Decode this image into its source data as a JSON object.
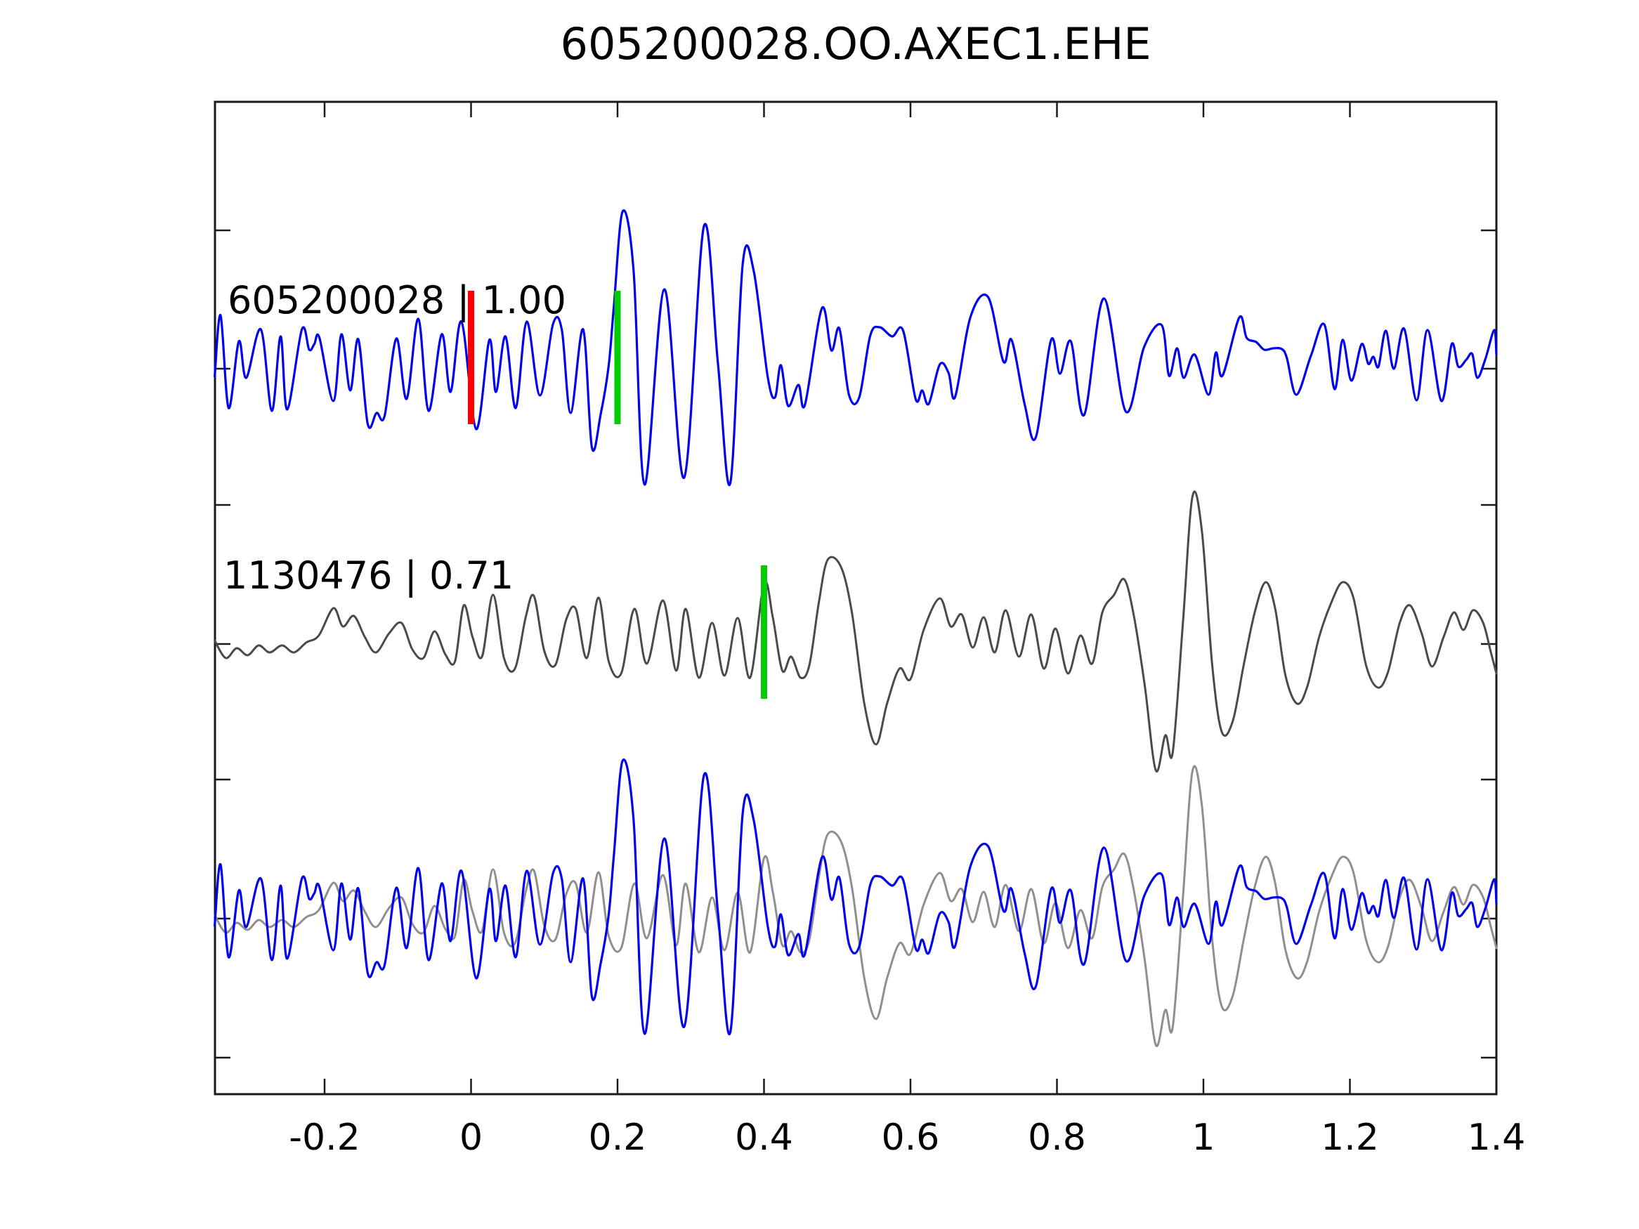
{
  "title": "605200028.OO.AXEC1.EHE",
  "chart_data": {
    "type": "line",
    "title": "605200028.OO.AXEC1.EHE",
    "xlabel": "",
    "ylabel": "",
    "grid": false,
    "legend_position": "none",
    "x_range": [
      -0.35,
      1.4
    ],
    "x_ticks": [
      {
        "value": -0.2,
        "label": "-0.2"
      },
      {
        "value": 0.0,
        "label": "0"
      },
      {
        "value": 0.2,
        "label": "0.2"
      },
      {
        "value": 0.4,
        "label": "0.4"
      },
      {
        "value": 0.6,
        "label": "0.6"
      },
      {
        "value": 0.8,
        "label": "0.8"
      },
      {
        "value": 1.0,
        "label": "1"
      },
      {
        "value": 1.2,
        "label": "1.2"
      },
      {
        "value": 1.4,
        "label": "1.4"
      }
    ],
    "rows": 3,
    "traces": [
      {
        "id": "605200028",
        "label": "605200028 | 1.00",
        "correlation": "1.00",
        "color": "#0000ee",
        "row": 0,
        "points": [
          [
            -0.35,
            -0.1
          ],
          [
            -0.342,
            0.77
          ],
          [
            -0.331,
            -0.55
          ],
          [
            -0.317,
            0.4
          ],
          [
            -0.307,
            -0.12
          ],
          [
            -0.287,
            0.57
          ],
          [
            -0.272,
            -0.59
          ],
          [
            -0.26,
            0.47
          ],
          [
            -0.251,
            -0.57
          ],
          [
            -0.231,
            0.57
          ],
          [
            -0.221,
            0.28
          ],
          [
            -0.214,
            0.36
          ],
          [
            -0.207,
            0.45
          ],
          [
            -0.188,
            -0.45
          ],
          [
            -0.177,
            0.5
          ],
          [
            -0.165,
            -0.3
          ],
          [
            -0.154,
            0.43
          ],
          [
            -0.141,
            -0.78
          ],
          [
            -0.129,
            -0.62
          ],
          [
            -0.118,
            -0.66
          ],
          [
            -0.102,
            0.44
          ],
          [
            -0.088,
            -0.42
          ],
          [
            -0.072,
            0.72
          ],
          [
            -0.058,
            -0.59
          ],
          [
            -0.04,
            0.5
          ],
          [
            -0.028,
            -0.32
          ],
          [
            -0.013,
            0.68
          ],
          [
            0.007,
            -0.85
          ],
          [
            0.025,
            0.42
          ],
          [
            0.034,
            -0.32
          ],
          [
            0.047,
            0.47
          ],
          [
            0.061,
            -0.55
          ],
          [
            0.076,
            0.68
          ],
          [
            0.094,
            -0.37
          ],
          [
            0.112,
            0.65
          ],
          [
            0.124,
            0.56
          ],
          [
            0.136,
            -0.62
          ],
          [
            0.153,
            0.57
          ],
          [
            0.165,
            -1.11
          ],
          [
            0.177,
            -0.64
          ],
          [
            0.188,
            0.06
          ],
          [
            0.195,
            0.9
          ],
          [
            0.207,
            2.25
          ],
          [
            0.222,
            1.4
          ],
          [
            0.237,
            -1.64
          ],
          [
            0.264,
            1.14
          ],
          [
            0.291,
            -1.54
          ],
          [
            0.318,
            2.04
          ],
          [
            0.337,
            0.1
          ],
          [
            0.354,
            -1.62
          ],
          [
            0.371,
            1.51
          ],
          [
            0.386,
            1.4
          ],
          [
            0.405,
            -0.1
          ],
          [
            0.415,
            -0.4
          ],
          [
            0.423,
            0.06
          ],
          [
            0.433,
            -0.52
          ],
          [
            0.447,
            -0.22
          ],
          [
            0.456,
            -0.5
          ],
          [
            0.479,
            0.87
          ],
          [
            0.492,
            0.27
          ],
          [
            0.503,
            0.58
          ],
          [
            0.516,
            -0.36
          ],
          [
            0.53,
            -0.4
          ],
          [
            0.545,
            0.48
          ],
          [
            0.558,
            0.6
          ],
          [
            0.575,
            0.47
          ],
          [
            0.59,
            0.55
          ],
          [
            0.607,
            -0.42
          ],
          [
            0.616,
            -0.3
          ],
          [
            0.625,
            -0.49
          ],
          [
            0.64,
            0.07
          ],
          [
            0.652,
            -0.05
          ],
          [
            0.661,
            -0.39
          ],
          [
            0.682,
            0.75
          ],
          [
            0.706,
            1.03
          ],
          [
            0.727,
            0.11
          ],
          [
            0.738,
            0.42
          ],
          [
            0.756,
            -0.5
          ],
          [
            0.771,
            -0.97
          ],
          [
            0.792,
            0.42
          ],
          [
            0.804,
            -0.06
          ],
          [
            0.819,
            0.4
          ],
          [
            0.837,
            -0.65
          ],
          [
            0.864,
            1.01
          ],
          [
            0.894,
            -0.6
          ],
          [
            0.919,
            0.32
          ],
          [
            0.943,
            0.63
          ],
          [
            0.953,
            -0.09
          ],
          [
            0.964,
            0.3
          ],
          [
            0.973,
            -0.12
          ],
          [
            0.988,
            0.21
          ],
          [
            1.007,
            -0.36
          ],
          [
            1.017,
            0.24
          ],
          [
            1.026,
            -0.09
          ],
          [
            1.049,
            0.74
          ],
          [
            1.059,
            0.45
          ],
          [
            1.072,
            0.39
          ],
          [
            1.083,
            0.28
          ],
          [
            1.095,
            0.3
          ],
          [
            1.107,
            0.29
          ],
          [
            1.114,
            0.16
          ],
          [
            1.127,
            -0.36
          ],
          [
            1.147,
            0.2
          ],
          [
            1.165,
            0.64
          ],
          [
            1.179,
            -0.28
          ],
          [
            1.19,
            0.42
          ],
          [
            1.202,
            -0.16
          ],
          [
            1.216,
            0.36
          ],
          [
            1.225,
            0.08
          ],
          [
            1.232,
            0.18
          ],
          [
            1.239,
            0.04
          ],
          [
            1.249,
            0.55
          ],
          [
            1.26,
            0.01
          ],
          [
            1.274,
            0.58
          ],
          [
            1.291,
            -0.44
          ],
          [
            1.306,
            0.56
          ],
          [
            1.325,
            -0.45
          ],
          [
            1.339,
            0.36
          ],
          [
            1.348,
            0.04
          ],
          [
            1.359,
            0.14
          ],
          [
            1.367,
            0.22
          ],
          [
            1.374,
            -0.12
          ],
          [
            1.385,
            0.15
          ],
          [
            1.397,
            0.56
          ],
          [
            1.4,
            0.21
          ]
        ]
      },
      {
        "id": "1130476",
        "label": "1130476 | 0.71",
        "correlation": "0.71",
        "color": "#4a4a4a",
        "row": 1,
        "points": [
          [
            -0.35,
            0.05
          ],
          [
            -0.335,
            -0.2
          ],
          [
            -0.32,
            -0.06
          ],
          [
            -0.305,
            -0.16
          ],
          [
            -0.29,
            -0.02
          ],
          [
            -0.275,
            -0.12
          ],
          [
            -0.258,
            -0.02
          ],
          [
            -0.242,
            -0.12
          ],
          [
            -0.225,
            0.02
          ],
          [
            -0.208,
            0.12
          ],
          [
            -0.188,
            0.51
          ],
          [
            -0.175,
            0.25
          ],
          [
            -0.16,
            0.4
          ],
          [
            -0.145,
            0.1
          ],
          [
            -0.13,
            -0.12
          ],
          [
            -0.112,
            0.15
          ],
          [
            -0.095,
            0.3
          ],
          [
            -0.08,
            -0.08
          ],
          [
            -0.065,
            -0.2
          ],
          [
            -0.05,
            0.18
          ],
          [
            -0.035,
            -0.15
          ],
          [
            -0.022,
            -0.25
          ],
          [
            -0.01,
            0.55
          ],
          [
            0.002,
            0.1
          ],
          [
            0.015,
            -0.18
          ],
          [
            0.03,
            0.7
          ],
          [
            0.045,
            -0.2
          ],
          [
            0.06,
            -0.35
          ],
          [
            0.075,
            0.4
          ],
          [
            0.086,
            0.68
          ],
          [
            0.1,
            -0.1
          ],
          [
            0.115,
            -0.3
          ],
          [
            0.13,
            0.35
          ],
          [
            0.143,
            0.5
          ],
          [
            0.158,
            -0.2
          ],
          [
            0.174,
            0.66
          ],
          [
            0.188,
            -0.25
          ],
          [
            0.205,
            -0.42
          ],
          [
            0.223,
            0.5
          ],
          [
            0.24,
            -0.28
          ],
          [
            0.262,
            0.62
          ],
          [
            0.28,
            -0.38
          ],
          [
            0.293,
            0.5
          ],
          [
            0.311,
            -0.48
          ],
          [
            0.329,
            0.3
          ],
          [
            0.346,
            -0.45
          ],
          [
            0.364,
            0.37
          ],
          [
            0.381,
            -0.48
          ],
          [
            0.4,
            0.86
          ],
          [
            0.412,
            0.38
          ],
          [
            0.425,
            -0.38
          ],
          [
            0.437,
            -0.18
          ],
          [
            0.45,
            -0.48
          ],
          [
            0.462,
            -0.3
          ],
          [
            0.475,
            0.6
          ],
          [
            0.487,
            1.2
          ],
          [
            0.505,
            1.1
          ],
          [
            0.52,
            0.45
          ],
          [
            0.537,
            -0.85
          ],
          [
            0.553,
            -1.43
          ],
          [
            0.568,
            -0.85
          ],
          [
            0.585,
            -0.35
          ],
          [
            0.6,
            -0.5
          ],
          [
            0.618,
            0.2
          ],
          [
            0.64,
            0.65
          ],
          [
            0.655,
            0.25
          ],
          [
            0.67,
            0.42
          ],
          [
            0.685,
            -0.05
          ],
          [
            0.7,
            0.38
          ],
          [
            0.715,
            -0.12
          ],
          [
            0.73,
            0.48
          ],
          [
            0.748,
            -0.18
          ],
          [
            0.765,
            0.42
          ],
          [
            0.782,
            -0.35
          ],
          [
            0.798,
            0.22
          ],
          [
            0.815,
            -0.42
          ],
          [
            0.832,
            0.12
          ],
          [
            0.848,
            -0.28
          ],
          [
            0.862,
            0.45
          ],
          [
            0.878,
            0.7
          ],
          [
            0.892,
            0.92
          ],
          [
            0.905,
            0.4
          ],
          [
            0.92,
            -0.6
          ],
          [
            0.935,
            -1.8
          ],
          [
            0.948,
            -1.3
          ],
          [
            0.958,
            -1.55
          ],
          [
            0.972,
            0.3
          ],
          [
            0.985,
            2.1
          ],
          [
            0.998,
            1.6
          ],
          [
            1.012,
            -0.3
          ],
          [
            1.025,
            -1.25
          ],
          [
            1.04,
            -1.1
          ],
          [
            1.055,
            -0.3
          ],
          [
            1.07,
            0.45
          ],
          [
            1.085,
            0.88
          ],
          [
            1.098,
            0.5
          ],
          [
            1.112,
            -0.45
          ],
          [
            1.128,
            -0.85
          ],
          [
            1.142,
            -0.6
          ],
          [
            1.158,
            0.1
          ],
          [
            1.175,
            0.6
          ],
          [
            1.19,
            0.88
          ],
          [
            1.205,
            0.65
          ],
          [
            1.222,
            -0.3
          ],
          [
            1.238,
            -0.62
          ],
          [
            1.252,
            -0.4
          ],
          [
            1.268,
            0.3
          ],
          [
            1.282,
            0.55
          ],
          [
            1.298,
            0.15
          ],
          [
            1.312,
            -0.32
          ],
          [
            1.328,
            0.1
          ],
          [
            1.342,
            0.45
          ],
          [
            1.355,
            0.2
          ],
          [
            1.368,
            0.48
          ],
          [
            1.382,
            0.3
          ],
          [
            1.392,
            -0.1
          ],
          [
            1.4,
            -0.42
          ]
        ]
      }
    ],
    "overlay_row": {
      "row": 2,
      "members": [
        {
          "trace_ref": 0,
          "color": "#0000ee"
        },
        {
          "trace_ref": 1,
          "color": "#8f8f8f"
        }
      ]
    },
    "markers": [
      {
        "row": 0,
        "t": 0.0,
        "color": "#ff0000",
        "kind": "pick-time"
      },
      {
        "row": 0,
        "t": 0.2,
        "color": "#00cc00",
        "kind": "pick-time"
      },
      {
        "row": 1,
        "t": 0.4,
        "color": "#00cc00",
        "kind": "pick-time"
      }
    ],
    "axis_color": "#1a1a1a",
    "text_color": "#000000"
  }
}
